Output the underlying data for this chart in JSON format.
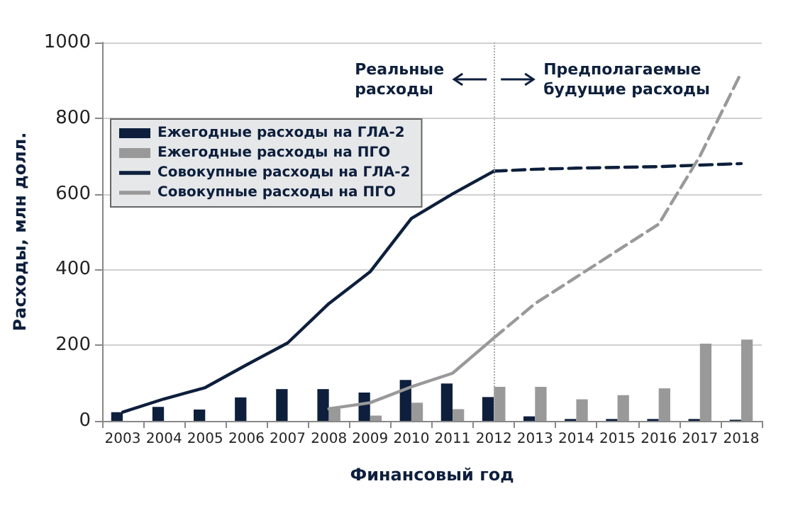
{
  "chart_data": {
    "type": "bar",
    "xlabel": "Финансовый год",
    "ylabel": "Расходы, млн долл.",
    "categories": [
      "2003",
      "2004",
      "2005",
      "2006",
      "2007",
      "2008",
      "2009",
      "2010",
      "2011",
      "2012",
      "2013",
      "2014",
      "2015",
      "2016",
      "2017",
      "2018"
    ],
    "series": [
      {
        "name": "Ежегодные расходы на ГЛА-2",
        "color": "#0d1f3c",
        "values": [
          23,
          37,
          30,
          62,
          84,
          84,
          75,
          108,
          99,
          63,
          12,
          5,
          5,
          5,
          5,
          3
        ]
      },
      {
        "name": "Ежегодные расходы на ПГО",
        "color": "#999999",
        "values": [
          null,
          null,
          null,
          null,
          null,
          32,
          14,
          48,
          31,
          90,
          90,
          57,
          68,
          86,
          204,
          215
        ]
      },
      {
        "name": "Совокупные расходы на ГЛА-2",
        "type": "line",
        "line_style": "solid",
        "color": "#0d1f3c",
        "values": [
          23,
          58,
          88,
          148,
          206,
          310,
          394,
          535,
          600,
          660,
          null,
          null,
          null,
          null,
          null,
          null
        ]
      },
      {
        "name": "Совокупные расходы на ПГО",
        "type": "line",
        "line_style": "solid",
        "color": "#999999",
        "values": [
          null,
          null,
          null,
          null,
          null,
          32,
          48,
          90,
          126,
          219,
          null,
          null,
          null,
          null,
          null,
          null
        ]
      },
      {
        "type": "line",
        "line_style": "dashed",
        "color": "#0d1f3c",
        "values": [
          null,
          null,
          null,
          null,
          null,
          null,
          null,
          null,
          null,
          660,
          665,
          668,
          670,
          672,
          676,
          680
        ]
      },
      {
        "type": "line",
        "line_style": "dashed",
        "color": "#999999",
        "values": [
          null,
          null,
          null,
          null,
          null,
          null,
          null,
          null,
          null,
          219,
          310,
          380,
          450,
          520,
          700,
          920
        ]
      }
    ],
    "ylim": [
      0,
      1000
    ],
    "yticks": [
      0,
      200,
      400,
      600,
      800,
      1000
    ],
    "grid": "y",
    "legend": "top left",
    "marker": "none",
    "ref_lines": [
      {
        "axis": "x",
        "value": "2012",
        "color": "#aaaaaa",
        "line_style": "dotted"
      }
    ],
    "annotations": [
      "Реальные расходы",
      "Предполагаемые будущие расходы"
    ]
  }
}
